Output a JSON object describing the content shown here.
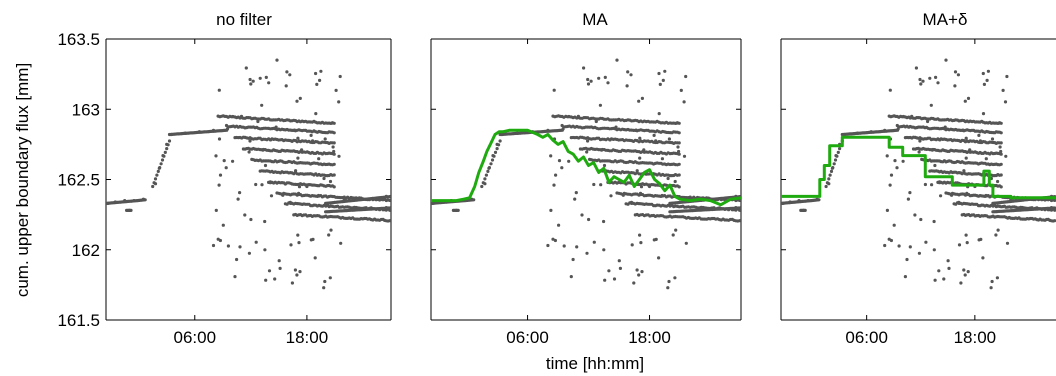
{
  "chart_data": {
    "type": "scatter",
    "ylabel": "cum. upper boundary flux [mm]",
    "xlabel": "time [hh:mm]",
    "xlim": [
      -3.5,
      27
    ],
    "ylim": [
      161.5,
      163.5
    ],
    "y_ticks": [
      161.5,
      162,
      162.5,
      163,
      163.5
    ],
    "y_tick_labels": [
      "161.5",
      "162",
      "162.5",
      "163",
      "163.5"
    ],
    "x_ticks": [
      6,
      18
    ],
    "x_tick_labels": [
      "06:00",
      "18:00"
    ],
    "grid": false,
    "raw_point_color": "#555555",
    "filtered_line_color": "#1faa10",
    "raw_observations": {
      "description_bands": [
        {
          "x": [
            -3.5,
            0.8
          ],
          "y": [
            162.33,
            162.36
          ]
        },
        {
          "x": [
            1.5,
            3.3
          ],
          "y": [
            162.45,
            162.77
          ]
        },
        {
          "x": [
            3.3,
            9.5
          ],
          "y": [
            162.82,
            162.85
          ]
        },
        {
          "x": [
            9.5,
            27
          ],
          "y": [
            162.33,
            162.37
          ]
        }
      ],
      "sample_points": [
        [
          -3.3,
          162.33
        ],
        [
          -2.5,
          162.34
        ],
        [
          -1.5,
          162.35
        ],
        [
          -0.5,
          162.35
        ],
        [
          0.5,
          162.36
        ],
        [
          -1.0,
          162.28
        ],
        [
          1.8,
          162.47
        ],
        [
          2.2,
          162.58
        ],
        [
          2.6,
          162.67
        ],
        [
          3.0,
          162.75
        ],
        [
          3.5,
          162.82
        ],
        [
          5.0,
          162.83
        ],
        [
          6.5,
          162.84
        ],
        [
          8.0,
          162.85
        ],
        [
          9.5,
          162.86
        ],
        [
          8.0,
          162.03
        ],
        [
          8.3,
          162.28
        ],
        [
          11.0,
          162.95
        ],
        [
          12.0,
          163.18
        ],
        [
          13.0,
          163.22
        ],
        [
          14.8,
          163.35
        ],
        [
          13.5,
          162.0
        ],
        [
          14.0,
          161.85
        ],
        [
          19.5,
          163.27
        ],
        [
          19.8,
          161.73
        ],
        [
          20.5,
          161.8
        ],
        [
          18.0,
          162.45
        ],
        [
          22.0,
          162.36
        ],
        [
          26.5,
          162.38
        ],
        [
          26.5,
          162.3
        ]
      ]
    },
    "panels": [
      {
        "title": "no filter",
        "filtered": null
      },
      {
        "title": "MA",
        "filtered": {
          "type": "line",
          "x": [
            -3.5,
            -1.0,
            -0.3,
            0.3,
            0.8,
            1.2,
            1.6,
            2.0,
            2.4,
            2.8,
            3.2,
            3.6,
            4.2,
            5.0,
            6.0,
            7.0,
            7.5,
            8.0,
            8.5,
            9.0,
            9.5,
            10.0,
            10.5,
            11.0,
            11.5,
            12.0,
            12.5,
            13.0,
            13.5,
            14.0,
            14.5,
            15.0,
            15.5,
            16.0,
            16.5,
            17.0,
            17.5,
            18.0,
            18.5,
            19.0,
            19.5,
            20.0,
            20.5,
            21.0,
            22.0,
            23.0,
            24.0,
            25.0,
            26.0,
            27.0
          ],
          "y": [
            162.35,
            162.35,
            162.36,
            162.37,
            162.45,
            162.55,
            162.62,
            162.7,
            162.76,
            162.82,
            162.84,
            162.84,
            162.85,
            162.85,
            162.85,
            162.82,
            162.8,
            162.82,
            162.78,
            162.75,
            162.77,
            162.7,
            162.68,
            162.63,
            162.66,
            162.6,
            162.62,
            162.55,
            162.58,
            162.48,
            162.52,
            162.5,
            162.48,
            162.53,
            162.45,
            162.5,
            162.55,
            162.57,
            162.5,
            162.47,
            162.42,
            162.46,
            162.38,
            162.36,
            162.35,
            162.36,
            162.35,
            162.32,
            162.36,
            162.37
          ]
        }
      },
      {
        "title": "MA+δ",
        "filtered": {
          "type": "step",
          "x": [
            -3.5,
            0.8,
            0.8,
            1.3,
            1.3,
            1.9,
            1.9,
            3.3,
            3.3,
            8.5,
            8.5,
            10.0,
            10.0,
            12.5,
            12.5,
            15.5,
            15.5,
            19.0,
            19.0,
            19.6,
            19.6,
            20.0,
            20.0,
            22.0,
            22.0,
            27.0
          ],
          "y": [
            162.38,
            162.38,
            162.5,
            162.5,
            162.6,
            162.6,
            162.74,
            162.74,
            162.8,
            162.8,
            162.73,
            162.73,
            162.67,
            162.67,
            162.52,
            162.52,
            162.46,
            162.46,
            162.56,
            162.56,
            162.46,
            162.46,
            162.38,
            162.38,
            162.37,
            162.37
          ]
        }
      }
    ]
  }
}
